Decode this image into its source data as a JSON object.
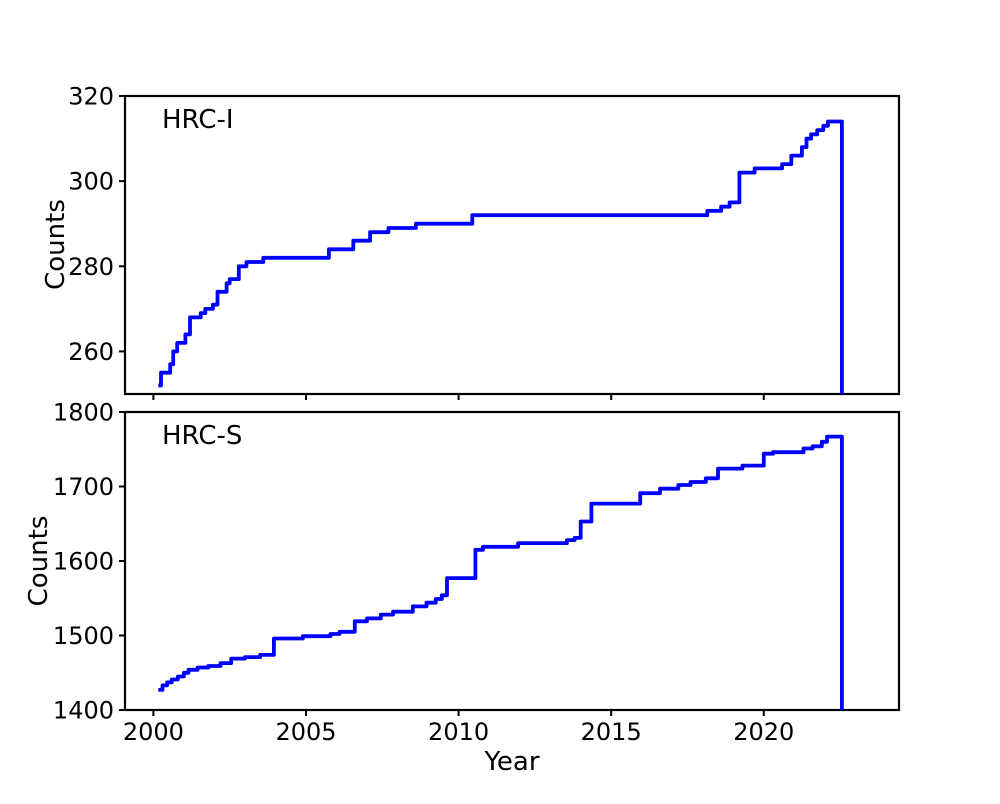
{
  "figure": {
    "background": "#ffffff",
    "axis_color": "#000000",
    "line_color": "#0000ff"
  },
  "chart_data": [
    {
      "type": "line",
      "style": "step-post",
      "label": "HRC-I",
      "ylabel": "Counts",
      "xlabel": "",
      "color": "#0000ff",
      "xlim": [
        1999.07,
        2024.43
      ],
      "ylim": [
        250,
        320
      ],
      "xticks": [
        2000,
        2005,
        2010,
        2015,
        2020
      ],
      "x_tick_labels_visible": false,
      "yticks": [
        260,
        280,
        300,
        320
      ],
      "grid": false,
      "points": [
        [
          2000.16,
          252
        ],
        [
          2000.25,
          255
        ],
        [
          2000.55,
          257
        ],
        [
          2000.65,
          260
        ],
        [
          2000.78,
          262
        ],
        [
          2001.05,
          264
        ],
        [
          2001.2,
          268
        ],
        [
          2001.55,
          269
        ],
        [
          2001.7,
          270
        ],
        [
          2001.95,
          271
        ],
        [
          2002.1,
          274
        ],
        [
          2002.4,
          276
        ],
        [
          2002.5,
          277
        ],
        [
          2002.8,
          280
        ],
        [
          2003.05,
          281
        ],
        [
          2003.6,
          282
        ],
        [
          2005.75,
          284
        ],
        [
          2006.55,
          286
        ],
        [
          2007.1,
          288
        ],
        [
          2007.7,
          289
        ],
        [
          2008.6,
          290
        ],
        [
          2010.45,
          292
        ],
        [
          2018.15,
          293
        ],
        [
          2018.6,
          294
        ],
        [
          2018.88,
          295
        ],
        [
          2019.2,
          302
        ],
        [
          2019.7,
          303
        ],
        [
          2020.6,
          304
        ],
        [
          2020.9,
          306
        ],
        [
          2021.25,
          308
        ],
        [
          2021.4,
          310
        ],
        [
          2021.55,
          311
        ],
        [
          2021.75,
          312
        ],
        [
          2021.95,
          313
        ],
        [
          2022.1,
          314
        ],
        [
          2022.56,
          314
        ],
        [
          2022.56,
          250
        ]
      ]
    },
    {
      "type": "line",
      "style": "step-post",
      "label": "HRC-S",
      "ylabel": "Counts",
      "xlabel": "Year",
      "color": "#0000ff",
      "xlim": [
        1999.07,
        2024.43
      ],
      "ylim": [
        1400,
        1800
      ],
      "xticks": [
        2000,
        2005,
        2010,
        2015,
        2020
      ],
      "x_tick_labels_visible": true,
      "yticks": [
        1400,
        1500,
        1600,
        1700,
        1800
      ],
      "grid": false,
      "points": [
        [
          2000.16,
          1427
        ],
        [
          2000.3,
          1433
        ],
        [
          2000.45,
          1437
        ],
        [
          2000.6,
          1441
        ],
        [
          2000.8,
          1445
        ],
        [
          2001.0,
          1450
        ],
        [
          2001.15,
          1454
        ],
        [
          2001.45,
          1457
        ],
        [
          2001.8,
          1459
        ],
        [
          2002.2,
          1463
        ],
        [
          2002.55,
          1469
        ],
        [
          2003.0,
          1471
        ],
        [
          2003.5,
          1474
        ],
        [
          2003.95,
          1496
        ],
        [
          2004.9,
          1499
        ],
        [
          2005.8,
          1502
        ],
        [
          2006.1,
          1505
        ],
        [
          2006.6,
          1519
        ],
        [
          2007.0,
          1523
        ],
        [
          2007.45,
          1528
        ],
        [
          2007.85,
          1532
        ],
        [
          2008.5,
          1539
        ],
        [
          2008.95,
          1544
        ],
        [
          2009.25,
          1549
        ],
        [
          2009.45,
          1554
        ],
        [
          2009.62,
          1577
        ],
        [
          2010.55,
          1615
        ],
        [
          2010.8,
          1619
        ],
        [
          2011.95,
          1624
        ],
        [
          2013.55,
          1628
        ],
        [
          2013.8,
          1631
        ],
        [
          2014.0,
          1653
        ],
        [
          2014.35,
          1677
        ],
        [
          2015.95,
          1691
        ],
        [
          2016.6,
          1697
        ],
        [
          2017.2,
          1702
        ],
        [
          2017.6,
          1706
        ],
        [
          2018.1,
          1711
        ],
        [
          2018.5,
          1724
        ],
        [
          2019.3,
          1728
        ],
        [
          2020.0,
          1744
        ],
        [
          2020.3,
          1746
        ],
        [
          2021.3,
          1751
        ],
        [
          2021.6,
          1754
        ],
        [
          2021.9,
          1760
        ],
        [
          2022.07,
          1767
        ],
        [
          2022.56,
          1767
        ],
        [
          2022.56,
          1400
        ]
      ]
    }
  ]
}
